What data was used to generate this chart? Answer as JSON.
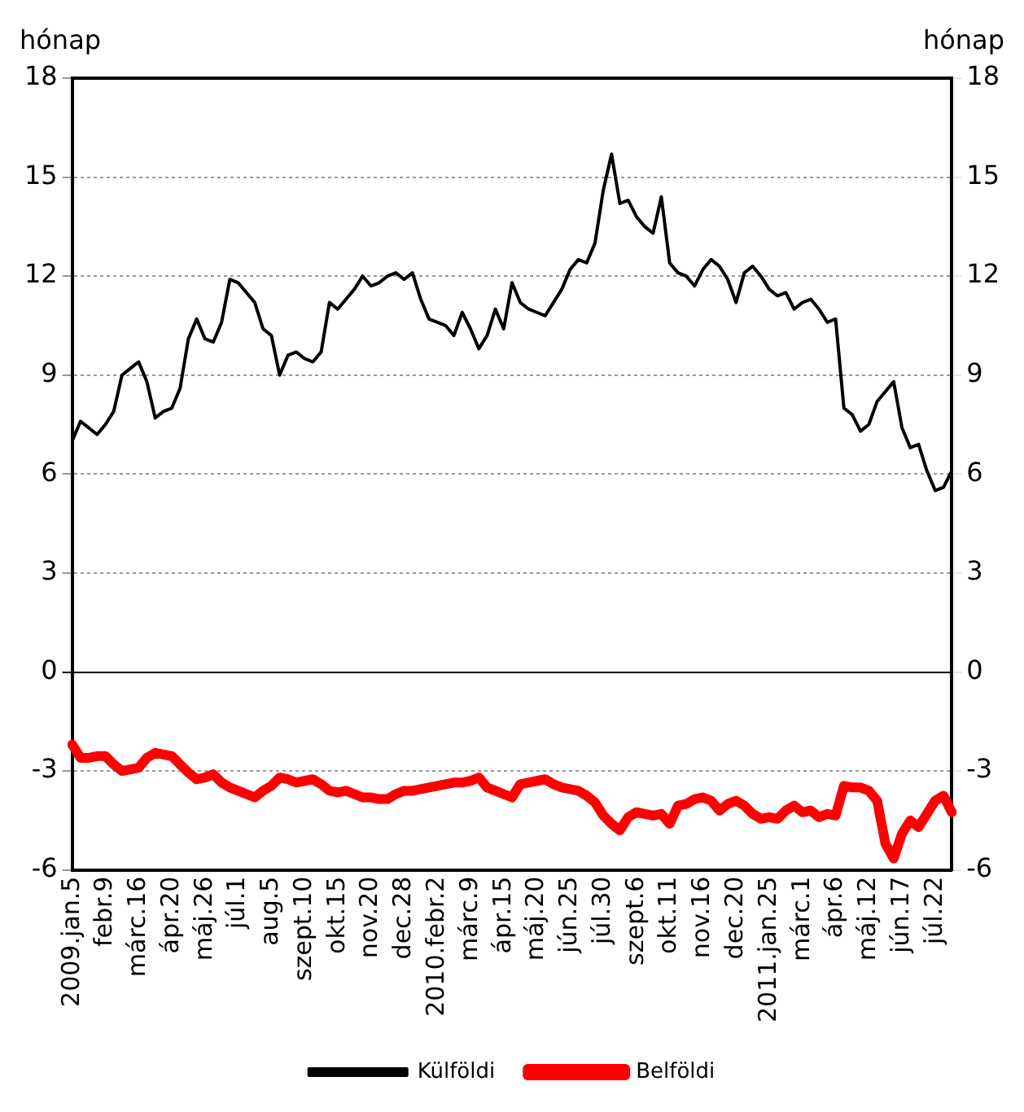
{
  "chart_data": {
    "type": "line",
    "ylabel": "hónap",
    "y2label": "hónap",
    "categories": [
      "2009.jan.5",
      null,
      null,
      null,
      "febr.9",
      null,
      null,
      null,
      "márc.16",
      null,
      null,
      null,
      "ápr.20",
      null,
      null,
      null,
      "máj.26",
      null,
      null,
      null,
      "júl.1",
      null,
      null,
      null,
      "aug.5",
      null,
      null,
      null,
      "szept.10",
      null,
      null,
      null,
      "okt.15",
      null,
      null,
      null,
      "nov.20",
      null,
      null,
      null,
      "dec.28",
      null,
      null,
      null,
      "2010.febr.2",
      null,
      null,
      null,
      "márc.9",
      null,
      null,
      null,
      "ápr.15",
      null,
      null,
      null,
      "máj.20",
      null,
      null,
      null,
      "jún.25",
      null,
      null,
      null,
      "júl.30",
      null,
      null,
      null,
      "szept.6",
      null,
      null,
      null,
      "okt.11",
      null,
      null,
      null,
      "nov.16",
      null,
      null,
      null,
      "dec.20",
      null,
      null,
      null,
      "2011.jan.25",
      null,
      null,
      null,
      "márc.1",
      null,
      null,
      null,
      "ápr.6",
      null,
      null,
      null,
      "máj.12",
      null,
      null,
      null,
      "jún.17",
      null,
      null,
      null,
      "júl.22",
      null,
      null
    ],
    "series": [
      {
        "name": "Külföldi",
        "color": "#000000",
        "values": [
          7.0,
          7.6,
          7.4,
          7.2,
          7.5,
          7.9,
          9.0,
          9.2,
          9.4,
          8.8,
          7.7,
          7.9,
          8.0,
          8.6,
          10.1,
          10.7,
          10.1,
          10.0,
          10.6,
          11.9,
          11.8,
          11.5,
          11.2,
          10.4,
          10.2,
          9.0,
          9.6,
          9.7,
          9.5,
          9.4,
          9.7,
          11.2,
          11.0,
          11.3,
          11.6,
          12.0,
          11.7,
          11.8,
          12.0,
          12.1,
          11.9,
          12.1,
          11.3,
          10.7,
          10.6,
          10.5,
          10.2,
          10.9,
          10.4,
          9.8,
          10.2,
          11.0,
          10.4,
          11.8,
          11.2,
          11.0,
          10.9,
          10.8,
          11.2,
          11.6,
          12.2,
          12.5,
          12.4,
          13.0,
          14.6,
          15.7,
          14.2,
          14.3,
          13.8,
          13.5,
          13.3,
          14.4,
          12.4,
          12.1,
          12.0,
          11.7,
          12.2,
          12.5,
          12.3,
          11.9,
          11.2,
          12.1,
          12.3,
          12.0,
          11.6,
          11.4,
          11.5,
          11.0,
          11.2,
          11.3,
          11.0,
          10.6,
          10.7,
          8.0,
          7.8,
          7.3,
          7.5,
          8.2,
          8.5,
          8.8,
          7.4,
          6.8,
          6.9,
          6.1,
          5.5,
          5.6,
          6.1
        ]
      },
      {
        "name": "Belföldi",
        "color": "#ff0000",
        "values": [
          -2.2,
          -2.6,
          -2.6,
          -2.55,
          -2.55,
          -2.8,
          -3.0,
          -2.95,
          -2.9,
          -2.6,
          -2.45,
          -2.5,
          -2.55,
          -2.8,
          -3.05,
          -3.25,
          -3.2,
          -3.1,
          -3.35,
          -3.5,
          -3.6,
          -3.7,
          -3.8,
          -3.6,
          -3.45,
          -3.2,
          -3.25,
          -3.35,
          -3.3,
          -3.25,
          -3.4,
          -3.6,
          -3.65,
          -3.6,
          -3.7,
          -3.8,
          -3.8,
          -3.85,
          -3.85,
          -3.7,
          -3.6,
          -3.6,
          -3.55,
          -3.5,
          -3.45,
          -3.4,
          -3.35,
          -3.35,
          -3.3,
          -3.2,
          -3.5,
          -3.6,
          -3.7,
          -3.8,
          -3.4,
          -3.35,
          -3.3,
          -3.25,
          -3.4,
          -3.5,
          -3.55,
          -3.6,
          -3.75,
          -3.95,
          -4.35,
          -4.6,
          -4.8,
          -4.4,
          -4.25,
          -4.3,
          -4.35,
          -4.3,
          -4.6,
          -4.05,
          -4.0,
          -3.85,
          -3.8,
          -3.9,
          -4.2,
          -4.0,
          -3.9,
          -4.05,
          -4.3,
          -4.45,
          -4.4,
          -4.45,
          -4.2,
          -4.05,
          -4.25,
          -4.2,
          -4.4,
          -4.3,
          -4.35,
          -3.45,
          -3.5,
          -3.5,
          -3.6,
          -3.9,
          -5.2,
          -5.65,
          -4.9,
          -4.5,
          -4.7,
          -4.3,
          -3.9,
          -3.75,
          -4.25
        ]
      }
    ],
    "ylim": [
      -6,
      18
    ],
    "yticks": [
      -6,
      -3,
      0,
      3,
      6,
      9,
      12,
      15,
      18
    ],
    "y2lim": [
      -6,
      18
    ],
    "y2ticks": [
      -6,
      -3,
      0,
      3,
      6,
      9,
      12,
      15,
      18
    ],
    "grid": "y",
    "legend": "bottom",
    "marker": "none",
    "line_style": "solid"
  }
}
